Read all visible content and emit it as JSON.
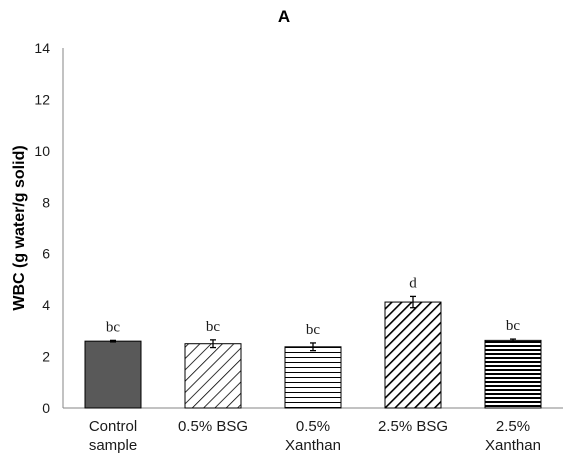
{
  "chart_data": {
    "type": "bar",
    "title": "A",
    "ylabel": "WBC (g water/g solid)",
    "xlabel": "",
    "ylim": [
      0,
      14
    ],
    "yticks": [
      0,
      2,
      4,
      6,
      8,
      10,
      12,
      14
    ],
    "categories": [
      [
        "Control",
        "sample"
      ],
      [
        "0.5% BSG"
      ],
      [
        "0.5%",
        "Xanthan"
      ],
      [
        "2.5% BSG"
      ],
      [
        "2.5%",
        "Xanthan"
      ]
    ],
    "values": [
      2.6,
      2.5,
      2.38,
      4.12,
      2.63
    ],
    "errors": [
      0.03,
      0.15,
      0.15,
      0.22,
      0.05
    ],
    "significance_labels": [
      "bc",
      "bc",
      "bc",
      "d",
      "bc"
    ],
    "patterns": [
      "solid-dark",
      "diagonal-light",
      "horizontal",
      "diagonal-dense",
      "horizontal-dense"
    ],
    "grid": false,
    "legend": "none",
    "colors": {
      "bar_fill_dark": "#595959",
      "pattern_stroke": "#000000",
      "axis": "#868686"
    }
  }
}
